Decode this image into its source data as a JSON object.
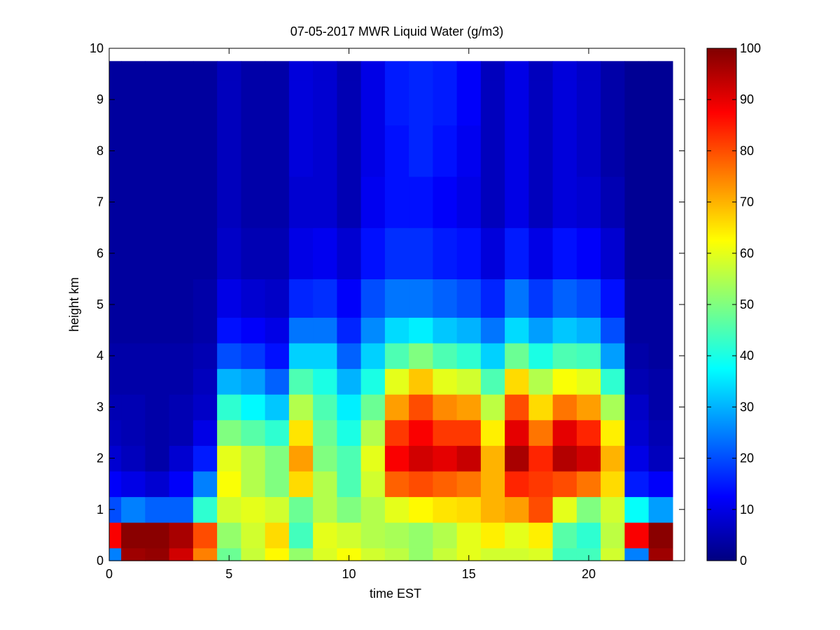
{
  "chart_data": {
    "type": "heatmap",
    "title": "07-05-2017 MWR Liquid Water (g/m3)",
    "xlabel": "time EST",
    "ylabel": "height km",
    "xlim": [
      0,
      24
    ],
    "ylim": [
      0,
      10
    ],
    "x_ticks": [
      "0",
      "5",
      "10",
      "15",
      "20"
    ],
    "y_ticks": [
      "0",
      "1",
      "2",
      "3",
      "4",
      "5",
      "6",
      "7",
      "8",
      "9",
      "10"
    ],
    "x_columns": [
      0,
      1,
      2,
      3,
      4,
      5,
      6,
      7,
      8,
      9,
      10,
      11,
      12,
      13,
      14,
      15,
      16,
      17,
      18,
      19,
      20,
      21,
      22,
      23
    ],
    "height_levels_km": [
      0.0,
      0.5,
      1.0,
      1.5,
      2.0,
      2.5,
      3.0,
      3.5,
      4.0,
      4.5,
      5.0,
      6.0,
      7.0,
      8.0,
      9.0,
      9.75
    ],
    "z_values": [
      [
        25,
        97,
        98,
        92,
        75,
        48,
        57,
        63,
        52,
        59,
        62,
        58,
        56,
        52,
        57,
        60,
        58,
        58,
        59,
        44,
        44,
        58,
        25,
        97
      ],
      [
        88,
        99,
        99,
        96,
        80,
        52,
        58,
        66,
        44,
        60,
        58,
        55,
        54,
        52,
        55,
        60,
        64,
        60,
        64,
        46,
        42,
        56,
        88,
        99
      ],
      [
        20,
        25,
        22,
        22,
        42,
        58,
        60,
        58,
        48,
        55,
        50,
        55,
        60,
        63,
        65,
        66,
        70,
        72,
        80,
        60,
        50,
        58,
        38,
        28
      ],
      [
        12,
        10,
        8,
        12,
        25,
        62,
        55,
        50,
        66,
        55,
        45,
        58,
        78,
        80,
        78,
        76,
        70,
        84,
        82,
        80,
        76,
        66,
        15,
        12
      ],
      [
        8,
        6,
        4,
        8,
        15,
        60,
        55,
        50,
        72,
        50,
        45,
        60,
        88,
        92,
        90,
        93,
        70,
        96,
        84,
        95,
        92,
        70,
        10,
        6
      ],
      [
        6,
        5,
        4,
        5,
        10,
        50,
        46,
        42,
        65,
        48,
        40,
        55,
        82,
        88,
        82,
        82,
        64,
        90,
        76,
        90,
        84,
        64,
        8,
        5
      ],
      [
        5,
        5,
        4,
        5,
        7,
        42,
        37,
        32,
        55,
        45,
        36,
        48,
        72,
        80,
        74,
        72,
        56,
        80,
        66,
        76,
        72,
        54,
        7,
        4
      ],
      [
        4,
        4,
        4,
        4,
        6,
        30,
        28,
        22,
        45,
        40,
        30,
        40,
        60,
        68,
        60,
        58,
        45,
        66,
        55,
        62,
        60,
        42,
        5,
        4
      ],
      [
        4,
        4,
        4,
        4,
        5,
        20,
        18,
        14,
        33,
        33,
        22,
        33,
        45,
        50,
        45,
        42,
        33,
        48,
        40,
        45,
        44,
        28,
        4,
        3
      ],
      [
        3,
        3,
        3,
        3,
        4,
        14,
        12,
        10,
        24,
        24,
        16,
        26,
        34,
        36,
        32,
        30,
        24,
        34,
        28,
        32,
        30,
        20,
        3,
        3
      ],
      [
        3,
        3,
        3,
        3,
        4,
        10,
        8,
        7,
        16,
        17,
        12,
        20,
        24,
        24,
        22,
        20,
        16,
        24,
        18,
        22,
        20,
        14,
        3,
        3
      ],
      [
        3,
        3,
        3,
        3,
        3,
        7,
        5,
        5,
        10,
        11,
        8,
        14,
        17,
        17,
        15,
        14,
        9,
        15,
        10,
        14,
        12,
        8,
        2,
        2
      ],
      [
        3,
        3,
        3,
        3,
        3,
        6,
        4,
        4,
        8,
        8,
        5,
        11,
        14,
        14,
        12,
        10,
        6,
        10,
        6,
        9,
        8,
        5,
        2,
        2
      ],
      [
        3,
        3,
        3,
        3,
        3,
        6,
        4,
        4,
        9,
        8,
        5,
        10,
        14,
        16,
        14,
        11,
        6,
        10,
        6,
        9,
        7,
        4,
        2,
        2
      ],
      [
        3,
        3,
        3,
        3,
        3,
        6,
        4,
        4,
        9,
        8,
        5,
        10,
        15,
        16,
        15,
        12,
        6,
        10,
        6,
        9,
        7,
        4,
        2,
        2
      ],
      [
        3,
        3,
        3,
        3,
        3,
        6,
        4,
        4,
        9,
        8,
        5,
        10,
        15,
        16,
        15,
        12,
        6,
        10,
        6,
        9,
        7,
        4,
        2,
        2
      ]
    ],
    "colorbar": {
      "colormap": "jet",
      "range": [
        0,
        100
      ],
      "ticks": [
        "0",
        "10",
        "20",
        "30",
        "40",
        "50",
        "60",
        "70",
        "80",
        "90",
        "100"
      ]
    },
    "grid": false
  }
}
